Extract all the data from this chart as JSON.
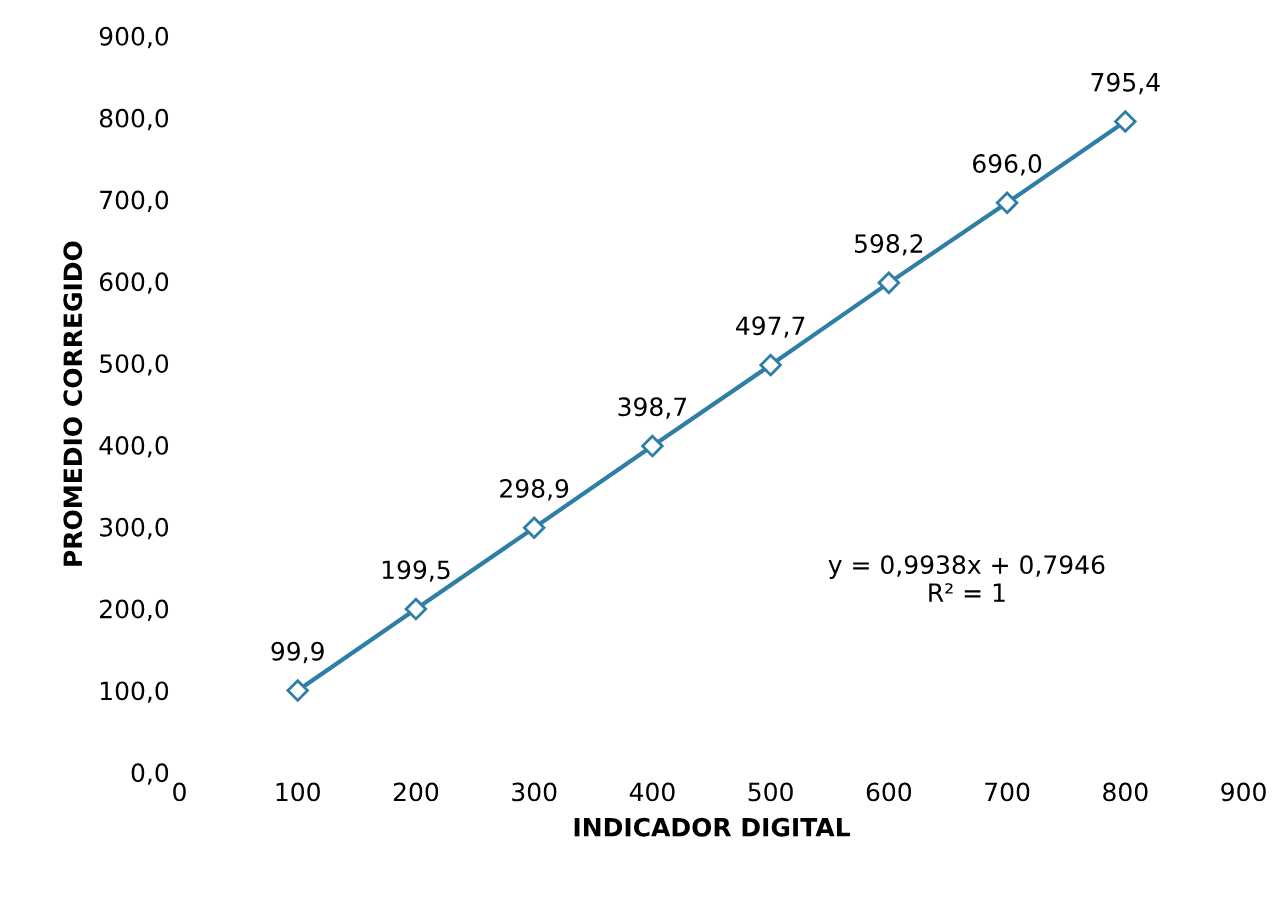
{
  "chart_data": {
    "type": "line",
    "xlabel": "INDICADOR DIGITAL",
    "ylabel": "PROMEDIO CORREGIDO",
    "x": [
      100,
      200,
      300,
      400,
      500,
      600,
      700,
      800
    ],
    "series": [
      {
        "color": "#2e7ea6",
        "values": [
          99.9,
          199.5,
          298.9,
          398.7,
          497.7,
          598.2,
          696.0,
          795.4
        ],
        "value_labels": [
          "99,9",
          "199,5",
          "298,9",
          "398,7",
          "497,7",
          "598,2",
          "696,0",
          "795,4"
        ]
      }
    ],
    "marker": "diamond",
    "line_style": "solid",
    "xlim": [
      0,
      900
    ],
    "xticks": [
      0,
      100,
      200,
      300,
      400,
      500,
      600,
      700,
      800,
      900
    ],
    "ylim": [
      0,
      900
    ],
    "yticks": [
      {
        "value": 0,
        "label": "0,0"
      },
      {
        "value": 100,
        "label": "100,0"
      },
      {
        "value": 200,
        "label": "200,0"
      },
      {
        "value": 300,
        "label": "300,0"
      },
      {
        "value": 400,
        "label": "400,0"
      },
      {
        "value": 500,
        "label": "500,0"
      },
      {
        "value": 600,
        "label": "600,0"
      },
      {
        "value": 700,
        "label": "700,0"
      },
      {
        "value": 800,
        "label": "800,0"
      },
      {
        "value": 900,
        "label": "900,0"
      }
    ],
    "annotations": [
      "y = 0,9938x + 0,7946\nR² = 1"
    ]
  }
}
